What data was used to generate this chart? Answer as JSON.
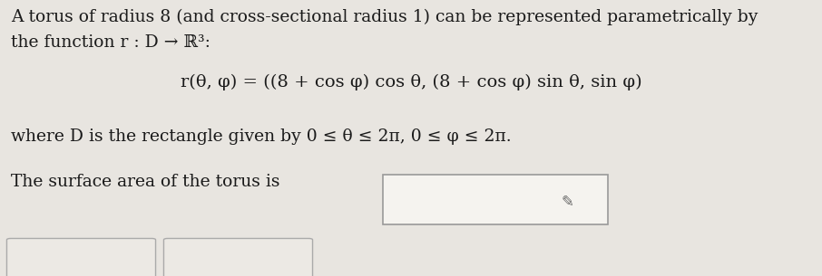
{
  "bg_color": "#e8e5e0",
  "text_color": "#1a1a1a",
  "line1": "A torus of radius 8 (and cross-sectional radius 1) can be represented parametrically by",
  "line2": "the function r : D → ℝ³:",
  "formula": "r(θ, φ) = ((8 + cos φ) cos θ, (8 + cos φ) sin θ, sin φ)",
  "line3": "where D is the rectangle given by 0 ≤ θ ≤ 2π, 0 ≤ φ ≤ 2π.",
  "line4_prefix": "The surface area of the torus is",
  "font_size_body": 13.5,
  "font_size_formula": 14.0,
  "box_color": "#f5f3ef",
  "box_border": "#999999",
  "btn_color": "#ece9e4",
  "btn_border": "#aaaaaa"
}
